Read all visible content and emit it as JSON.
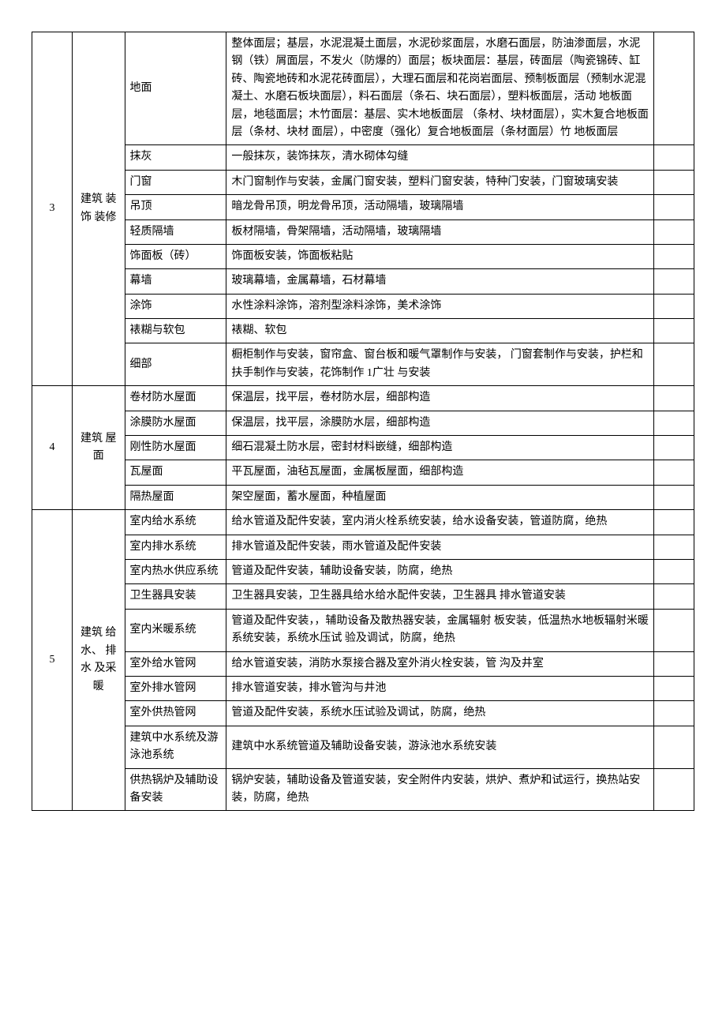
{
  "sections": [
    {
      "num": "3",
      "category": "建筑 装饰 装修",
      "rows": [
        {
          "sub": "地面",
          "desc": "整体面层；基层，水泥混凝土面层，水泥砂浆面层，水磨石面层，防油渗面层，水泥钢（铁）屑面层，不发火（防爆的）面层；板块面层：基层，砖面层（陶瓷锦砖、缸砖、陶瓷地砖和水泥花砖面层），大理石面层和花岗岩面层、预制板面层（预制水泥混凝土、水磨石板块面层），料石面层（条石、块石面层），塑料板面层，活动 地板面层，地毯面层；木竹面层：基层、实木地板面层 （条材、块材面层），实木复合地板面层（条材、块材 面层），中密度（强化）复合地板面层（条材面层）竹 地板面层"
        },
        {
          "sub": "抹灰",
          "desc": "一般抹灰，装饰抹灰，清水砌体勾缝"
        },
        {
          "sub": "门窗",
          "desc": "木门窗制作与安装，金属门窗安装，塑料门窗安装，特种门安装，门窗玻璃安装"
        },
        {
          "sub": "吊顶",
          "desc": "暗龙骨吊顶，明龙骨吊顶，活动隔墙，玻璃隔墙"
        },
        {
          "sub": "轻质隔墙",
          "desc": "板材隔墙，骨架隔墙，活动隔墙，玻璃隔墙"
        },
        {
          "sub": "饰面板（砖）",
          "desc": "饰面板安装，饰面板粘贴"
        },
        {
          "sub": "幕墙",
          "desc": "玻璃幕墙，金属幕墙，石材幕墙"
        },
        {
          "sub": "涂饰",
          "desc": "水性涂料涂饰，溶剂型涂料涂饰，美术涂饰"
        },
        {
          "sub": "裱糊与软包",
          "desc": "裱糊、软包"
        },
        {
          "sub": "细部",
          "desc": "橱柜制作与安装，窗帘盒、窗台板和暖气罩制作与安装， 门窗套制作与安装，护栏和扶手制作与安装，花饰制作  1广壮\n与安装"
        }
      ]
    },
    {
      "num": "4",
      "category": "建筑 屋面",
      "rows": [
        {
          "sub": "卷材防水屋面",
          "desc": "保温层，找平层，卷材防水层，细部构造"
        },
        {
          "sub": "涂膜防水屋面",
          "desc": "保温层，找平层，涂膜防水层，细部构造"
        },
        {
          "sub": "刚性防水屋面",
          "desc": "细石混凝土防水层，密封材料嵌缝，细部构造"
        },
        {
          "sub": "瓦屋面",
          "desc": "平瓦屋面，油毡瓦屋面，金属板屋面，细部构造"
        },
        {
          "sub": "隔热屋面",
          "desc": "架空屋面，蓄水屋面，种植屋面"
        }
      ]
    },
    {
      "num": "5",
      "category": "建筑 给 水、 排水 及采 暖",
      "rows": [
        {
          "sub": "室内给水系统",
          "desc": "给水管道及配件安装，室内消火栓系统安装，给水设备安装，管道防腐，绝热"
        },
        {
          "sub": "室内排水系统",
          "desc": "排水管道及配件安装，雨水管道及配件安装"
        },
        {
          "sub": "室内热水供应系统",
          "desc": "管道及配件安装，辅助设备安装，防腐，绝热"
        },
        {
          "sub": "卫生器具安装",
          "desc": "卫生器具安装，卫生器具给水给水配件安装，卫生器具 排水管道安装"
        },
        {
          "sub": "室内米暖系统",
          "desc": "管道及配件安装，，辅助设备及散热器安装，金属辐射 板安装，低温热水地板辐射米暖系统安装，系统水压试 验及调试，防腐，绝热"
        },
        {
          "sub": "室外给水管网",
          "desc": "给水管道安装，消防水泵接合器及室外消火栓安装，管 沟及井室"
        },
        {
          "sub": "室外排水管网",
          "desc": "排水管道安装，排水管沟与井池"
        },
        {
          "sub": "室外供热管网",
          "desc": "管道及配件安装，系统水压试验及调试，防腐，绝热"
        },
        {
          "sub": "建筑中水系统及游泳池系统",
          "desc": "建筑中水系统管道及辅助设备安装，游泳池水系统安装"
        },
        {
          "sub": "供热锅炉及辅助设备安装",
          "desc": "锅炉安装，辅助设备及管道安装，安全附件内安装，烘炉、煮炉和试运行，换热站安装，防腐，绝热"
        }
      ]
    }
  ]
}
